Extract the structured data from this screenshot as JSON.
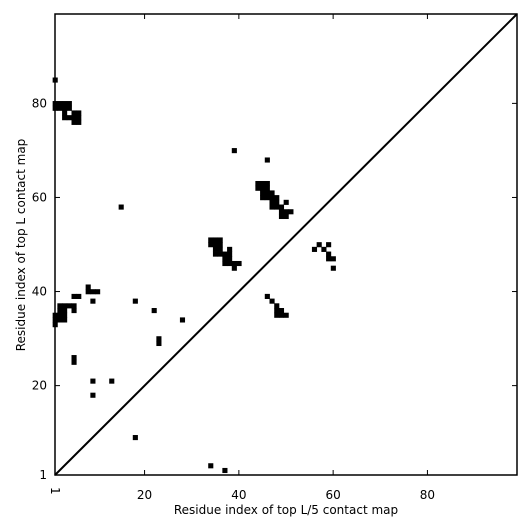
{
  "chart_data": {
    "type": "heatmap",
    "xlabel": "Residue index of top L/5 contact map",
    "ylabel": "Residue index of top L contact map",
    "xlim": [
      1,
      99
    ],
    "ylim": [
      1,
      99
    ],
    "x_ticks": [
      {
        "value": 1,
        "label": "1"
      },
      {
        "value": 20,
        "label": "20"
      },
      {
        "value": 40,
        "label": "40"
      },
      {
        "value": 60,
        "label": "60"
      },
      {
        "value": 80,
        "label": "80"
      }
    ],
    "y_ticks": [
      {
        "value": 1,
        "label": "1"
      },
      {
        "value": 20,
        "label": "20"
      },
      {
        "value": 40,
        "label": "40"
      },
      {
        "value": 60,
        "label": "60"
      },
      {
        "value": 80,
        "label": "80"
      }
    ],
    "diagonal": true,
    "cell_color": "#000000",
    "background_color": "#ffffff",
    "upper_triangle_contacts": [
      [
        1,
        85
      ],
      [
        1,
        80
      ],
      [
        2,
        80
      ],
      [
        3,
        80
      ],
      [
        4,
        80
      ],
      [
        1,
        79
      ],
      [
        2,
        79
      ],
      [
        3,
        79
      ],
      [
        4,
        79
      ],
      [
        3,
        78
      ],
      [
        5,
        78
      ],
      [
        3,
        77
      ],
      [
        4,
        77
      ],
      [
        5,
        77
      ],
      [
        5,
        76
      ],
      [
        6,
        76
      ],
      [
        6,
        77
      ],
      [
        6,
        78
      ],
      [
        39,
        70
      ],
      [
        46,
        68
      ],
      [
        15,
        58
      ],
      [
        44,
        63
      ],
      [
        45,
        63
      ],
      [
        46,
        63
      ],
      [
        44,
        62
      ],
      [
        45,
        62
      ],
      [
        46,
        62
      ],
      [
        45,
        61
      ],
      [
        46,
        61
      ],
      [
        47,
        61
      ],
      [
        45,
        60
      ],
      [
        46,
        60
      ],
      [
        47,
        60
      ],
      [
        48,
        60
      ],
      [
        47,
        59
      ],
      [
        48,
        59
      ],
      [
        47,
        58
      ],
      [
        48,
        58
      ],
      [
        49,
        58
      ],
      [
        50,
        59
      ],
      [
        49,
        57
      ],
      [
        50,
        57
      ],
      [
        51,
        57
      ],
      [
        49,
        56
      ],
      [
        50,
        56
      ],
      [
        34,
        51
      ],
      [
        35,
        51
      ],
      [
        36,
        51
      ],
      [
        34,
        50
      ],
      [
        35,
        50
      ],
      [
        36,
        50
      ],
      [
        35,
        49
      ],
      [
        36,
        49
      ],
      [
        38,
        49
      ],
      [
        35,
        48
      ],
      [
        36,
        48
      ],
      [
        37,
        48
      ],
      [
        38,
        48
      ],
      [
        37,
        47
      ],
      [
        38,
        47
      ],
      [
        37,
        46
      ],
      [
        38,
        46
      ],
      [
        39,
        46
      ],
      [
        40,
        46
      ],
      [
        39,
        45
      ],
      [
        57,
        50
      ],
      [
        59,
        50
      ],
      [
        56,
        49
      ],
      [
        58,
        49
      ],
      [
        59,
        48
      ],
      [
        59,
        47
      ],
      [
        60,
        47
      ],
      [
        60,
        45
      ],
      [
        5,
        39
      ],
      [
        6,
        39
      ],
      [
        8,
        41
      ],
      [
        8,
        40
      ],
      [
        9,
        40
      ],
      [
        10,
        40
      ],
      [
        9,
        38
      ],
      [
        18,
        38
      ],
      [
        46,
        39
      ],
      [
        47,
        38
      ],
      [
        48,
        37
      ],
      [
        48,
        36
      ],
      [
        49,
        36
      ],
      [
        48,
        35
      ],
      [
        49,
        35
      ],
      [
        50,
        35
      ],
      [
        2,
        37
      ],
      [
        3,
        37
      ],
      [
        4,
        37
      ],
      [
        5,
        37
      ],
      [
        2,
        36
      ],
      [
        3,
        36
      ],
      [
        5,
        36
      ],
      [
        1,
        35
      ],
      [
        2,
        35
      ],
      [
        3,
        35
      ],
      [
        1,
        34
      ],
      [
        2,
        34
      ],
      [
        3,
        34
      ],
      [
        1,
        33
      ],
      [
        22,
        36
      ],
      [
        28,
        34
      ],
      [
        23,
        30
      ],
      [
        23,
        29
      ],
      [
        5,
        26
      ],
      [
        5,
        25
      ],
      [
        9,
        21
      ],
      [
        13,
        21
      ],
      [
        9,
        18
      ],
      [
        18,
        9
      ],
      [
        34,
        3
      ],
      [
        37,
        2
      ]
    ],
    "lower_triangle_contacts": []
  }
}
